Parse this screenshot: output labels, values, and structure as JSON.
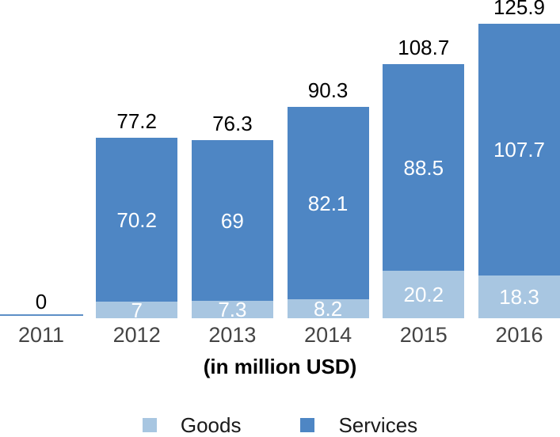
{
  "chart_data": {
    "type": "bar",
    "stacked": true,
    "title": "",
    "xlabel": "(in million USD)",
    "ylabel": "",
    "categories": [
      "2011",
      "2012",
      "2013",
      "2014",
      "2015",
      "2016"
    ],
    "series": [
      {
        "name": "Goods",
        "color": "#a8c6e1",
        "values": [
          0,
          7,
          7.3,
          8.2,
          20.2,
          18.3
        ],
        "labels": [
          "",
          "7",
          "7.3",
          "8.2",
          "20.2",
          "18.3"
        ]
      },
      {
        "name": "Services",
        "color": "#4e86c4",
        "values": [
          0,
          70.2,
          69,
          82.1,
          88.5,
          107.7
        ],
        "labels": [
          "",
          "70.2",
          "69",
          "82.1",
          "88.5",
          "107.7"
        ]
      }
    ],
    "totals": [
      0,
      77.2,
      76.3,
      90.3,
      108.7,
      125.9
    ],
    "total_labels": [
      "0",
      "77.2",
      "76.3",
      "90.3",
      "108.7",
      "125.9"
    ],
    "ylim": [
      0,
      136
    ],
    "grid": false,
    "legend": {
      "position": "bottom",
      "items": [
        {
          "label": "Goods",
          "color": "#a8c6e1"
        },
        {
          "label": "Services",
          "color": "#4e86c4"
        }
      ]
    },
    "colors": {
      "total_label": "#000000",
      "segment_label": "#ffffff",
      "tick_label": "#444444",
      "zero_line": "#5d8fc7",
      "background": "#ffffff"
    }
  }
}
